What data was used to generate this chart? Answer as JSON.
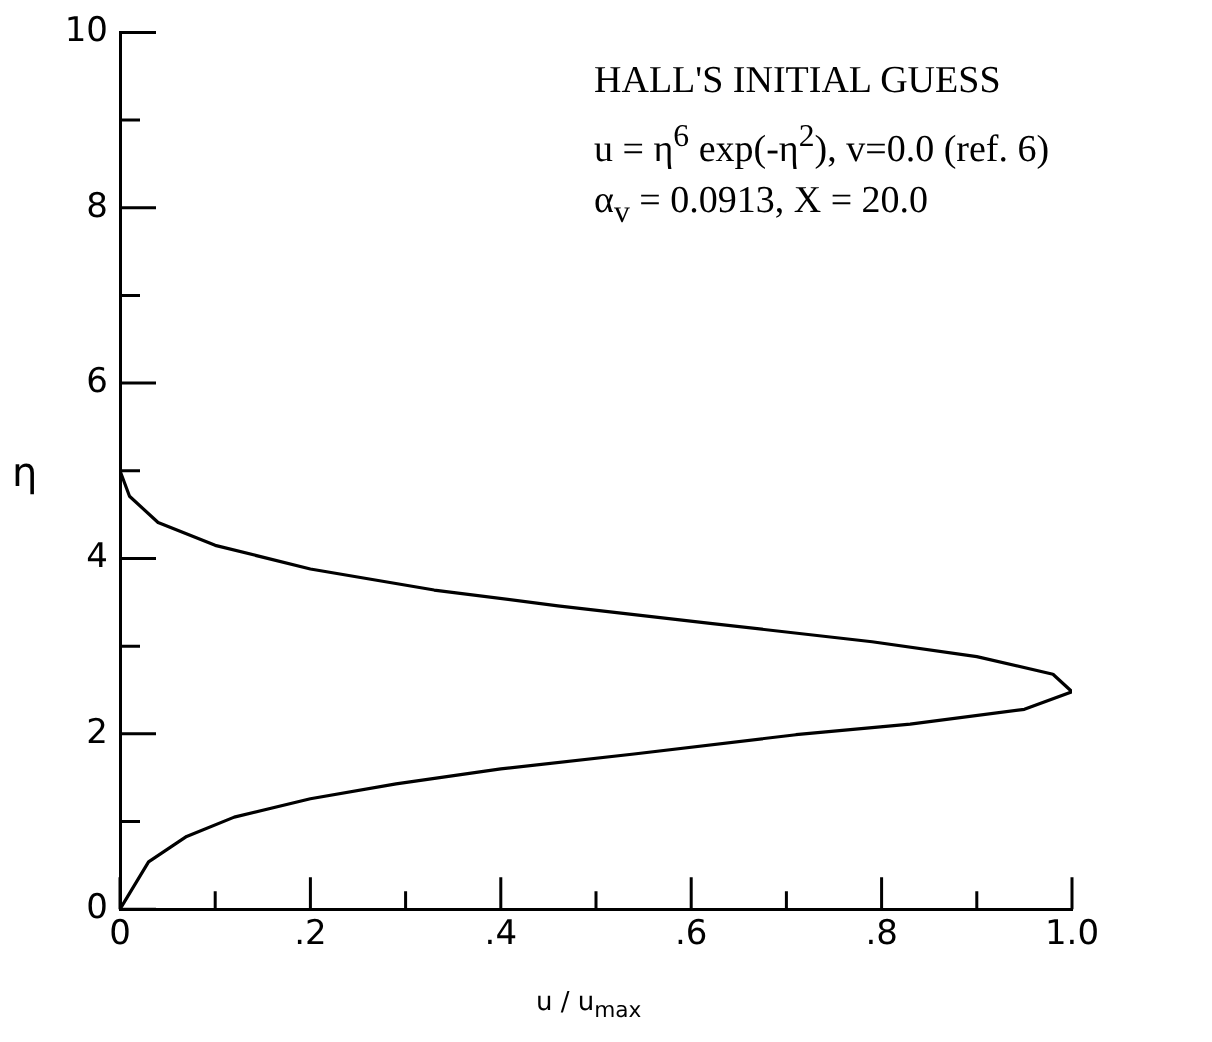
{
  "chart_data": {
    "type": "line",
    "xlabel": "u / u$_{max}$",
    "ylabel": "η",
    "annotations": [
      "HALL'S INITIAL GUESS",
      "u = η$^{6}$  exp(-η$^{2}$),  v=0.0  (ref. 6)",
      "α$_{v}$ = 0.0913, X = 20.0"
    ],
    "series": [
      {
        "color": "#000000",
        "x": [
          0,
          0.03,
          0.07,
          0.12,
          0.2,
          0.29,
          0.4,
          0.54,
          0.71,
          0.83,
          0.95,
          1.0,
          0.98,
          0.9,
          0.79,
          0.62,
          0.46,
          0.33,
          0.2,
          0.1,
          0.04,
          0.01,
          0.0,
          0
        ],
        "values": [
          0,
          0.54,
          0.83,
          1.05,
          1.26,
          1.43,
          1.6,
          1.77,
          1.99,
          2.11,
          2.28,
          2.48,
          2.68,
          2.88,
          3.05,
          3.26,
          3.46,
          3.64,
          3.88,
          4.15,
          4.41,
          4.71,
          5.0,
          5.4
        ]
      }
    ],
    "xlim": [
      0,
      1.0
    ],
    "ylim": [
      0,
      10
    ],
    "xticks": [
      0,
      {
        "value": 0.1,
        "label": null
      },
      {
        "value": 0.2,
        "label": ".2"
      },
      {
        "value": 0.3,
        "label": null
      },
      {
        "value": 0.4,
        "label": ".4"
      },
      {
        "value": 0.5,
        "label": null
      },
      {
        "value": 0.6,
        "label": ".6"
      },
      {
        "value": 0.7,
        "label": null
      },
      {
        "value": 0.8,
        "label": ".8"
      },
      {
        "value": 0.9,
        "label": null
      },
      {
        "value": 1.0,
        "label": "1.0"
      }
    ],
    "yticks": [
      0,
      {
        "value": 1,
        "label": null
      },
      2,
      {
        "value": 3,
        "label": null
      },
      4,
      {
        "value": 5,
        "label": null
      },
      6,
      {
        "value": 7,
        "label": null
      },
      8,
      {
        "value": 9,
        "label": null
      },
      10
    ],
    "grid": false,
    "legend": false,
    "marker": "none",
    "line_style": "solid"
  }
}
